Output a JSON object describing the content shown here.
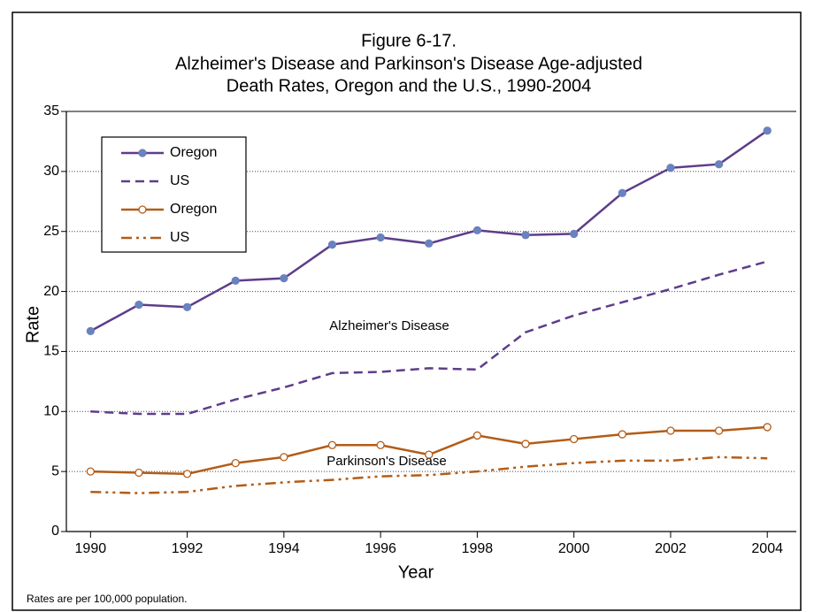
{
  "chart_data": {
    "type": "line",
    "title": [
      "Figure 6-17.",
      "Alzheimer's Disease and Parkinson's Disease Age-adjusted",
      "Death Rates, Oregon and the U.S., 1990-2004"
    ],
    "xlabel": "Year",
    "ylabel": "Rate",
    "x": [
      1990,
      1991,
      1992,
      1993,
      1994,
      1995,
      1996,
      1997,
      1998,
      1999,
      2000,
      2001,
      2002,
      2003,
      2004
    ],
    "series": [
      {
        "name": "Oregon",
        "color": "#5e3d8a",
        "marker_color": "#6a82bd",
        "linestyle": "solid",
        "marker": "filled",
        "values": [
          16.7,
          18.9,
          18.7,
          20.9,
          21.1,
          23.9,
          24.5,
          24.0,
          25.1,
          24.7,
          24.8,
          28.2,
          30.3,
          30.6,
          33.4
        ]
      },
      {
        "name": "US",
        "color": "#5e3d8a",
        "linestyle": "dashed",
        "marker": null,
        "values": [
          10.0,
          9.8,
          9.8,
          11.0,
          12.0,
          13.2,
          13.3,
          13.6,
          13.5,
          16.6,
          18.0,
          19.1,
          20.2,
          21.4,
          22.5
        ]
      },
      {
        "name": "Oregon",
        "color": "#b35c17",
        "marker_color": "#ffffff",
        "linestyle": "solid",
        "marker": "open",
        "values": [
          5.0,
          4.9,
          4.8,
          5.7,
          6.2,
          7.2,
          7.2,
          6.4,
          8.0,
          7.3,
          7.7,
          8.1,
          8.4,
          8.4,
          8.7
        ]
      },
      {
        "name": "US",
        "color": "#b35c17",
        "linestyle": "dash-dot-dot",
        "marker": null,
        "values": [
          3.3,
          3.2,
          3.3,
          3.8,
          4.1,
          4.3,
          4.6,
          4.7,
          5.0,
          5.4,
          5.7,
          5.9,
          5.9,
          6.2,
          6.1
        ]
      }
    ],
    "annotations": [
      "Alzheimer's Disease",
      "Parkinson's Disease"
    ],
    "footnote": "Rates are per 100,000 population.",
    "xlim": [
      1989.5,
      2004.6
    ],
    "xticks": [
      1990,
      1992,
      1994,
      1996,
      1998,
      2000,
      2002,
      2004
    ],
    "ylim": [
      0,
      35
    ],
    "yticks": [
      0,
      5,
      10,
      15,
      20,
      25,
      30,
      35
    ],
    "grid": true,
    "legend": "upper left"
  }
}
